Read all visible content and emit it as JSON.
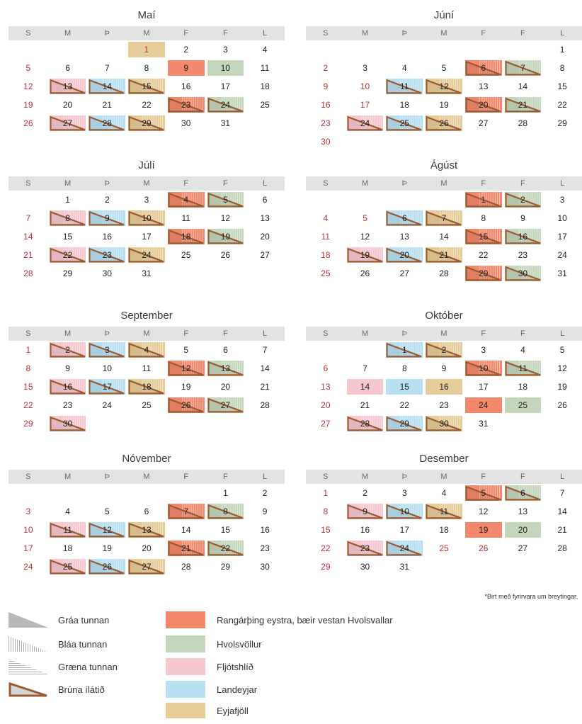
{
  "weekday_header": [
    "S",
    "M",
    "Þ",
    "M",
    "F",
    "F",
    "L"
  ],
  "colors": {
    "rang": "#f4886c",
    "hvol": "#c4d6bb",
    "fljot": "#f7c7d0",
    "land": "#b8e0f3",
    "eyja": "#e6cc99",
    "brown": "#9a5b32",
    "grey": "#b9b9b9"
  },
  "months": [
    {
      "name": "Maí",
      "offset": 3,
      "days": 31,
      "red": [
        1
      ],
      "marks": {
        "1": "eyja",
        "9": "rang",
        "10": "hvol",
        "13": "fljot|t",
        "14": "land|t",
        "15": "eyja|t",
        "23": "rang|t",
        "24": "hvol|t",
        "27": "fljot|t",
        "28": "land|t",
        "29": "eyja|t"
      }
    },
    {
      "name": "Júní",
      "offset": 6,
      "days": 30,
      "red": [
        10,
        17
      ],
      "marks": {
        "6": "rang|t",
        "7": "hvol|t",
        "11": "land|t",
        "12": "eyja|t",
        "20": "rang|t",
        "21": "hvol|t",
        "24": "fljot|t",
        "25": "land|t",
        "26": "eyja|t"
      }
    },
    {
      "name": "Júlí",
      "offset": 1,
      "days": 31,
      "red": [],
      "marks": {
        "4": "rang|t",
        "5": "hvol|t",
        "8": "fljot|t",
        "9": "land|t",
        "10": "eyja|t",
        "18": "rang|t",
        "19": "hvol|t",
        "22": "fljot|t",
        "23": "land|t",
        "24": "eyja|t"
      }
    },
    {
      "name": "Ágúst",
      "offset": 4,
      "days": 31,
      "red": [
        5
      ],
      "marks": {
        "1": "rang|t",
        "2": "hvol|t",
        "6": "land|t",
        "7": "eyja|t",
        "15": "rang|t",
        "16": "hvol|t",
        "19": "fljot|t",
        "20": "land|t",
        "21": "eyja|t",
        "29": "rang|t",
        "30": "hvol|t"
      }
    },
    {
      "name": "September",
      "offset": 0,
      "days": 30,
      "red": [],
      "marks": {
        "2": "fljot|t",
        "3": "land|t",
        "4": "eyja|t",
        "12": "rang|t",
        "13": "hvol|t",
        "16": "fljot|t",
        "17": "land|t",
        "18": "eyja|t",
        "26": "rang|t",
        "27": "hvol|t",
        "30": "fljot|t"
      }
    },
    {
      "name": "Október",
      "offset": 2,
      "days": 31,
      "red": [],
      "marks": {
        "1": "land|t",
        "2": "eyja|t",
        "10": "rang|t",
        "11": "hvol|t",
        "14": "fljot",
        "15": "land",
        "16": "eyja",
        "24": "rang",
        "25": "hvol",
        "28": "fljot|t",
        "29": "land|t",
        "30": "eyja|t"
      }
    },
    {
      "name": "Nóvember",
      "offset": 5,
      "days": 30,
      "red": [],
      "marks": {
        "7": "rang|t",
        "8": "hvol|t",
        "11": "fljot|t",
        "12": "land|t",
        "13": "eyja|t",
        "21": "rang|t",
        "22": "hvol|t",
        "25": "fljot|t",
        "26": "land|t",
        "27": "eyja|t"
      }
    },
    {
      "name": "Desember",
      "offset": 0,
      "days": 31,
      "red": [
        25,
        26
      ],
      "marks": {
        "5": "rang|t",
        "6": "hvol|t",
        "9": "fljot|t",
        "10": "land|t",
        "11": "eyja|t",
        "19": "rang",
        "20": "hvol",
        "23": "fljot|t",
        "24": "land|t"
      }
    }
  ],
  "note": "*Birt með fyrirvara um breytingar.",
  "legend_bins": [
    {
      "label": "Gráa tunnan",
      "icon": "grey-bin-triangle-icon"
    },
    {
      "label": "Bláa tunnan",
      "icon": "blue-bin-stripes-icon"
    },
    {
      "label": "Græna tunnan",
      "icon": "green-bin-stripes-icon"
    },
    {
      "label": "Brúna ílátið",
      "icon": "brown-container-triangle-icon"
    }
  ],
  "legend_areas": [
    {
      "label": "Rangárþing eystra, bæir vestan Hvolsvallar",
      "color": "#f4886c"
    },
    {
      "label": "Hvolsvöllur",
      "color": "#c4d6bb"
    },
    {
      "label": "Fljótshlíð",
      "color": "#f7c7d0"
    },
    {
      "label": "Landeyjar",
      "color": "#b8e0f3"
    },
    {
      "label": "Eyjafjöll",
      "color": "#e6cc99"
    }
  ]
}
